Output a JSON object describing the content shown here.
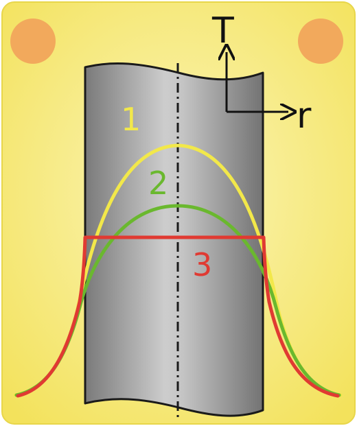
{
  "diagram": {
    "axis_vertical_label": "T",
    "axis_horizontal_label": "r",
    "curves": [
      {
        "label": "1",
        "color": "#f2e84a"
      },
      {
        "label": "2",
        "color": "#6ab82e"
      },
      {
        "label": "3",
        "color": "#e03a32"
      }
    ]
  },
  "colors": {
    "background": "#f5e66a",
    "cylinder_dark": "#7a7a7a",
    "cylinder_light": "#c8c8c8",
    "corner_dots": "#f2a95c"
  }
}
